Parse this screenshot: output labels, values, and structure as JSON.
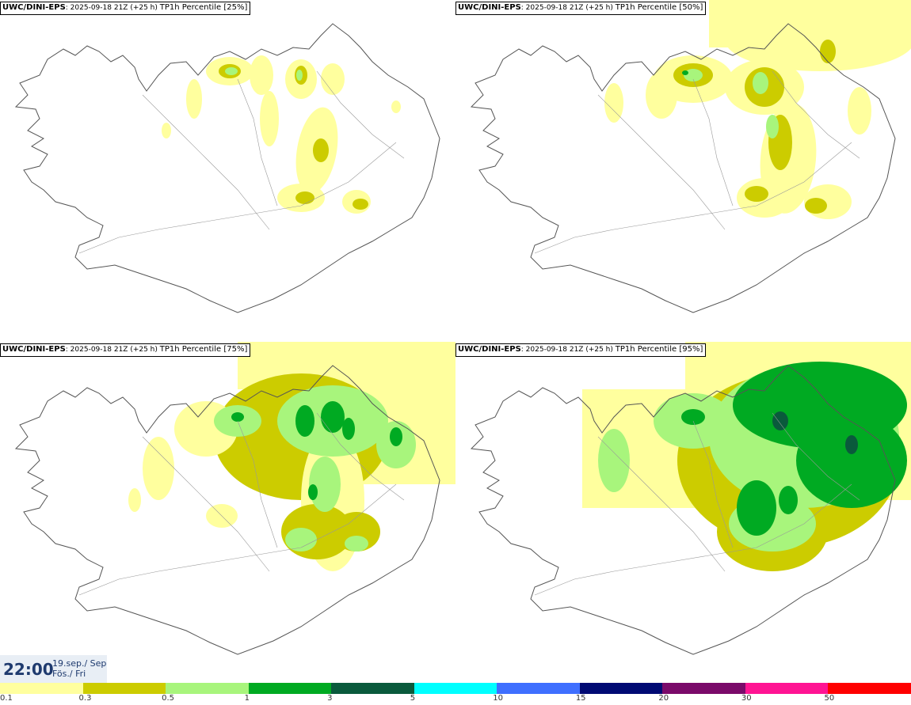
{
  "panels": [
    {
      "model": "UWC/DINI-EPS",
      "run": "2025-09-18 21Z (+25 h)",
      "field": "TP1h Percentile [25%]"
    },
    {
      "model": "UWC/DINI-EPS",
      "run": "2025-09-18 21Z (+25 h)",
      "field": "TP1h Percentile [50%]"
    },
    {
      "model": "UWC/DINI-EPS",
      "run": "2025-09-18 21Z (+25 h)",
      "field": "TP1h Percentile [75%]"
    },
    {
      "model": "UWC/DINI-EPS",
      "run": "2025-09-18 21Z (+25 h)",
      "field": "TP1h Percentile [95%]"
    }
  ],
  "valid_time": {
    "time": "22:00",
    "date_line1": "19.sep./ Sep",
    "date_line2": "Fös./ Fri"
  },
  "colorbar": {
    "labels": [
      "0.1",
      "0.3",
      "0.5",
      "1",
      "3",
      "5",
      "10",
      "15",
      "20",
      "30",
      "50"
    ],
    "colors": [
      "#ffff9e",
      "#cccc00",
      "#a8f57c",
      "#00aa22",
      "#0a5a3c",
      "#00ffff",
      "#3f6fff",
      "#000a73",
      "#7a0a6a",
      "#ff1493",
      "#ff0000"
    ]
  },
  "map_colors": {
    "light": "#ffff9e",
    "mid": "#cccc00",
    "green": "#a8f57c",
    "dark": "#00aa22",
    "darker": "#0a5a3c"
  }
}
